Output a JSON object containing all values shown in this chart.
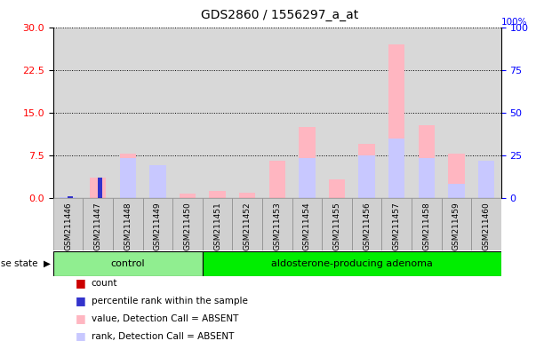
{
  "title": "GDS2860 / 1556297_a_at",
  "samples": [
    "GSM211446",
    "GSM211447",
    "GSM211448",
    "GSM211449",
    "GSM211450",
    "GSM211451",
    "GSM211452",
    "GSM211453",
    "GSM211454",
    "GSM211455",
    "GSM211456",
    "GSM211457",
    "GSM211458",
    "GSM211459",
    "GSM211460"
  ],
  "n_control": 5,
  "n_adenoma": 10,
  "group_label_control": "control",
  "group_label_adenoma": "aldosterone-producing adenoma",
  "color_control": "#90EE90",
  "color_adenoma": "#00EE00",
  "value_absent": [
    0.15,
    3.5,
    7.8,
    4.5,
    0.8,
    1.2,
    0.9,
    6.5,
    12.5,
    3.2,
    9.5,
    27.0,
    12.8,
    7.8,
    6.5
  ],
  "rank_absent": [
    0.1,
    0.0,
    7.0,
    5.8,
    0.0,
    0.0,
    0.0,
    0.0,
    7.0,
    0.0,
    7.5,
    10.5,
    7.0,
    2.5,
    6.5
  ],
  "count": [
    0.0,
    0.0,
    0.0,
    0.0,
    0.0,
    0.0,
    0.0,
    0.0,
    0.0,
    0.0,
    0.0,
    0.0,
    0.0,
    0.0,
    0.0
  ],
  "percentile": [
    0.3,
    3.5,
    0.0,
    0.0,
    0.0,
    0.0,
    0.0,
    0.0,
    0.0,
    0.0,
    0.0,
    0.0,
    0.0,
    0.0,
    0.0
  ],
  "ylim_left": [
    0,
    30
  ],
  "ylim_right": [
    0,
    100
  ],
  "yticks_left": [
    0,
    7.5,
    15,
    22.5,
    30
  ],
  "yticks_right": [
    0,
    25,
    50,
    75,
    100
  ],
  "color_value_absent": "#FFB6C1",
  "color_rank_absent": "#C8C8FF",
  "color_count": "#CC0000",
  "color_percentile": "#3333CC",
  "bg_plot": "#D8D8D8",
  "bg_label": "#D0D0D0",
  "legend_items": [
    [
      "#CC0000",
      "count"
    ],
    [
      "#3333CC",
      "percentile rank within the sample"
    ],
    [
      "#FFB6C1",
      "value, Detection Call = ABSENT"
    ],
    [
      "#C8C8FF",
      "rank, Detection Call = ABSENT"
    ]
  ]
}
